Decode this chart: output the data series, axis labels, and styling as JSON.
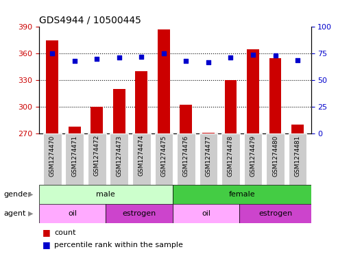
{
  "title": "GDS4944 / 10500445",
  "samples": [
    "GSM1274470",
    "GSM1274471",
    "GSM1274472",
    "GSM1274473",
    "GSM1274474",
    "GSM1274475",
    "GSM1274476",
    "GSM1274477",
    "GSM1274478",
    "GSM1274479",
    "GSM1274480",
    "GSM1274481"
  ],
  "counts": [
    375,
    278,
    300,
    320,
    340,
    387,
    302,
    271,
    330,
    365,
    355,
    280
  ],
  "percentiles": [
    75,
    68,
    70,
    71,
    72,
    75,
    68,
    67,
    71,
    74,
    73,
    69
  ],
  "ylim_left": [
    270,
    390
  ],
  "ylim_right": [
    0,
    100
  ],
  "yticks_left": [
    270,
    300,
    330,
    360,
    390
  ],
  "yticks_right": [
    0,
    25,
    50,
    75,
    100
  ],
  "bar_color": "#cc0000",
  "dot_color": "#0000cc",
  "color_male_light": "#ccffcc",
  "color_female_green": "#44cc44",
  "color_oil": "#ffaaff",
  "color_estrogen": "#cc44cc",
  "grid_color": "#000000",
  "bg_xtick": "#cccccc",
  "male_count": 6,
  "female_count": 6,
  "oil_male_count": 3,
  "estrogen_male_count": 3,
  "oil_female_count": 3,
  "estrogen_female_count": 3
}
